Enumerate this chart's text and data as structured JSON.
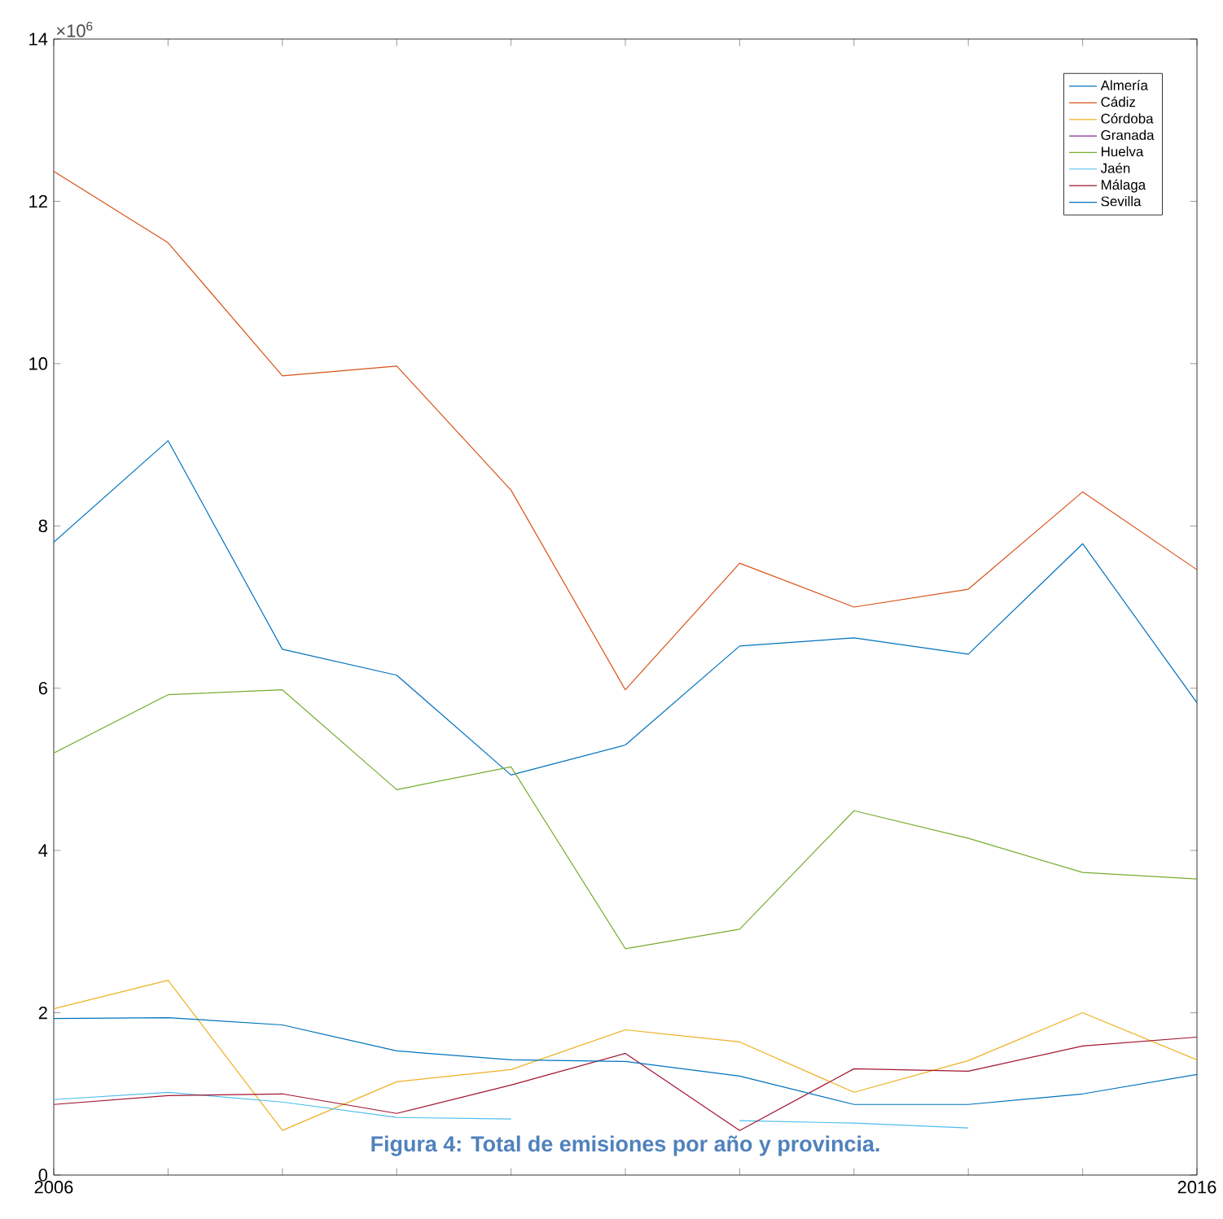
{
  "chart_data": {
    "type": "line",
    "x": [
      2006,
      2007,
      2008,
      2009,
      2010,
      2011,
      2012,
      2013,
      2014,
      2015,
      2016
    ],
    "xlim": [
      2006,
      2016
    ],
    "xticks": [
      {
        "value": 2006,
        "label": "2006"
      },
      {
        "value": 2007,
        "label": null
      },
      {
        "value": 2008,
        "label": null
      },
      {
        "value": 2009,
        "label": null
      },
      {
        "value": 2010,
        "label": null
      },
      {
        "value": 2011,
        "label": null
      },
      {
        "value": 2012,
        "label": null
      },
      {
        "value": 2013,
        "label": null
      },
      {
        "value": 2014,
        "label": null
      },
      {
        "value": 2015,
        "label": null
      },
      {
        "value": 2016,
        "label": "2016"
      }
    ],
    "ylim": [
      0,
      14
    ],
    "yticks": [
      0,
      2,
      4,
      6,
      8,
      10,
      12,
      14
    ],
    "legend": "top right",
    "grid": false,
    "marker": "none",
    "line_style": "solid",
    "annotations": [
      "×10$^{6}$",
      "Figura 4: Total de emisiones por año y provincia."
    ],
    "series": [
      {
        "name": "Almería",
        "color": "#0072bd",
        "values": [
          7.8,
          9.05,
          6.48,
          6.16,
          4.93,
          5.3,
          6.52,
          6.62,
          6.42,
          7.78,
          5.82
        ]
      },
      {
        "name": "Cádiz",
        "color": "#d95319",
        "values": [
          12.37,
          11.49,
          9.85,
          9.97,
          8.44,
          5.98,
          7.54,
          7.0,
          7.22,
          8.42,
          7.46
        ]
      },
      {
        "name": "Córdoba",
        "color": "#edb120",
        "values": [
          2.05,
          2.4,
          0.55,
          1.15,
          1.3,
          1.79,
          1.64,
          1.02,
          1.41,
          2.0,
          1.42
        ]
      },
      {
        "name": "Granada",
        "color": "#7e2f8e",
        "values": [
          null,
          null,
          null,
          null,
          null,
          null,
          null,
          null,
          null,
          null,
          null
        ]
      },
      {
        "name": "Huelva",
        "color": "#77ac30",
        "values": [
          5.2,
          5.92,
          5.98,
          4.75,
          5.03,
          2.79,
          3.03,
          4.49,
          4.15,
          3.73,
          3.65
        ]
      },
      {
        "name": "Jaén",
        "color": "#4dbeee",
        "values": [
          0.93,
          1.02,
          0.9,
          0.71,
          0.69,
          null,
          0.67,
          0.64,
          0.58,
          null,
          null
        ]
      },
      {
        "name": "Málaga",
        "color": "#a2142f",
        "values": [
          0.87,
          0.98,
          1.0,
          0.76,
          1.11,
          1.5,
          0.55,
          1.31,
          1.28,
          1.59,
          1.7
        ]
      },
      {
        "name": "Sevilla",
        "color": "#0072bd",
        "values": [
          1.93,
          1.94,
          1.85,
          1.53,
          1.42,
          1.4,
          1.22,
          0.87,
          0.87,
          1.0,
          1.24
        ]
      }
    ]
  }
}
